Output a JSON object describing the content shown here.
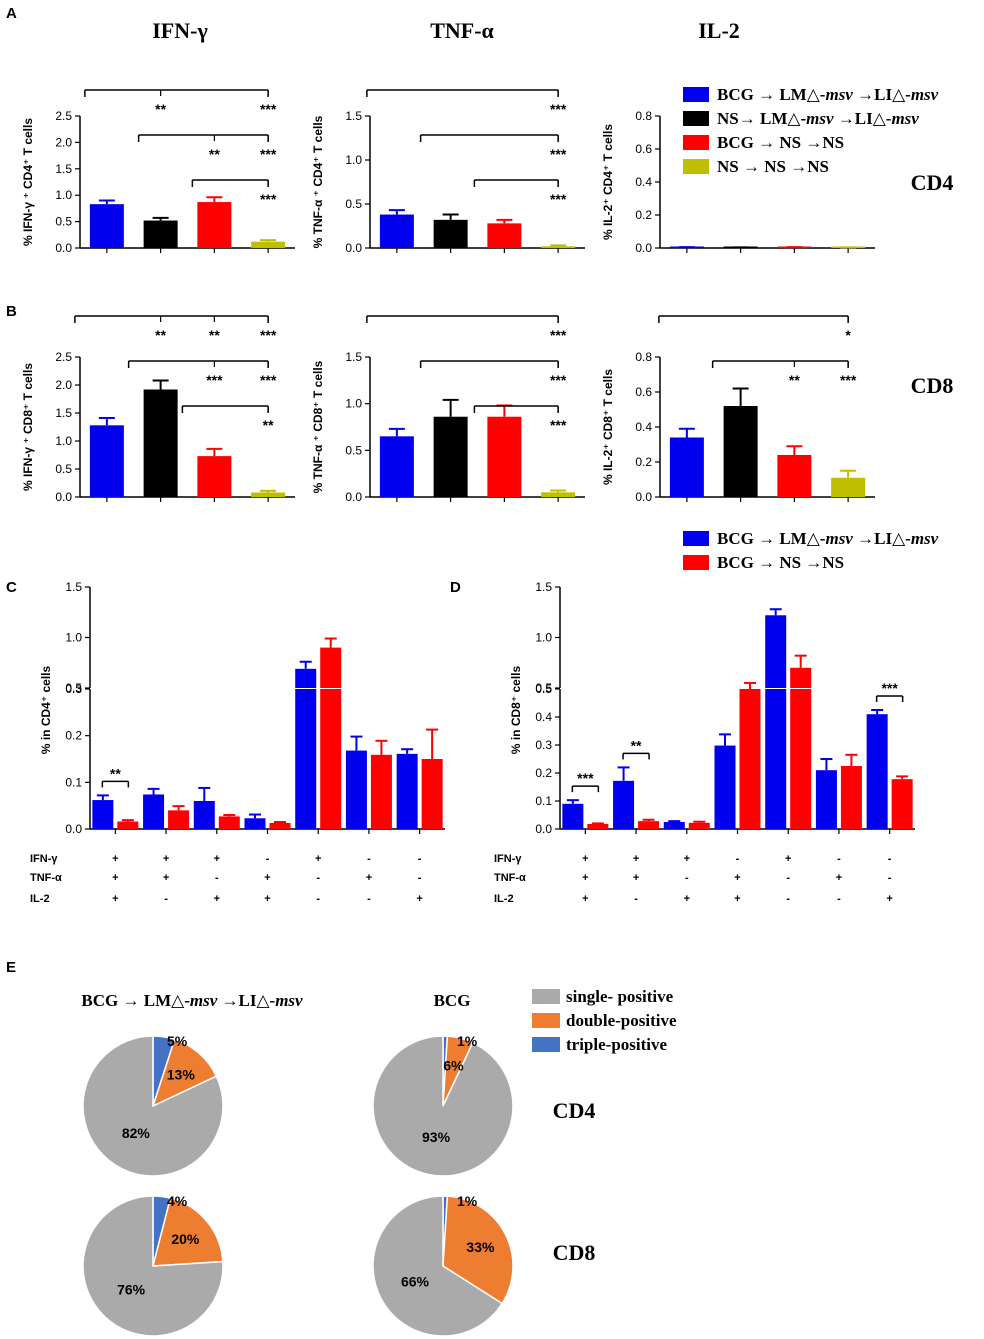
{
  "panel_letters": [
    "A",
    "B",
    "C",
    "D",
    "E"
  ],
  "column_titles": [
    "IFN-γ",
    "TNF-α",
    "IL-2"
  ],
  "row_labels": {
    "cd4": "CD4",
    "cd8": "CD8"
  },
  "colors": {
    "blue": "#0000ee",
    "black": "#000000",
    "red": "#ff0000",
    "yellow": "#bfbf00",
    "gray": "#aaaaaa",
    "orange": "#ed7d31",
    "lightblue": "#4472c4"
  },
  "legend_main": [
    {
      "prefix": "BCG → LM△-",
      "italic": "msv",
      "mid": " →LI△-",
      "italic2": "msv",
      "color": "#0000ee"
    },
    {
      "prefix": "NS→ LM△-",
      "italic": "msv",
      "mid": " →LI△-",
      "italic2": "msv",
      "color": "#000000"
    },
    {
      "prefix": "BCG → NS →NS",
      "italic": "",
      "mid": "",
      "italic2": "",
      "color": "#ff0000"
    },
    {
      "prefix": "NS → NS →NS",
      "italic": "",
      "mid": "",
      "italic2": "",
      "color": "#bfbf00"
    }
  ],
  "legend_cd": [
    {
      "prefix": "BCG → LM△-",
      "italic": "msv",
      "mid": " →LI△-",
      "italic2": "msv",
      "color": "#0000ee"
    },
    {
      "prefix": "BCG → NS →NS",
      "italic": "",
      "mid": "",
      "italic2": "",
      "color": "#ff0000"
    }
  ],
  "chart_data": [
    {
      "id": "A1",
      "type": "bar",
      "ylabel": "% IFN-γ ⁺ CD4⁺ T cells",
      "ylim": [
        0,
        2.5
      ],
      "ticks": [
        "0.0",
        "0.5",
        "1.0",
        "1.5",
        "2.0",
        "2.5"
      ],
      "tick_values": [
        0,
        0.5,
        1,
        1.5,
        2,
        2.5
      ],
      "values": [
        0.83,
        0.52,
        0.87,
        0.12
      ],
      "errors": [
        0.07,
        0.05,
        0.09,
        0.03
      ],
      "sig": [
        {
          "from": 0,
          "to": 3,
          "labels": [
            [
              "1",
              "**"
            ],
            [
              "3",
              "***"
            ]
          ]
        },
        {
          "from": 1,
          "to": 3,
          "labels": [
            [
              "2",
              "**"
            ],
            [
              "3",
              "***"
            ]
          ]
        },
        {
          "from": 2,
          "to": 3,
          "labels": [
            [
              "3",
              "***"
            ]
          ]
        }
      ]
    },
    {
      "id": "A2",
      "type": "bar",
      "ylabel": "% TNF-α ⁺ CD4⁺ T cells",
      "ylim": [
        0,
        1.5
      ],
      "ticks": [
        "0.0",
        "0.5",
        "1.0",
        "1.5"
      ],
      "tick_values": [
        0,
        0.5,
        1,
        1.5
      ],
      "values": [
        0.38,
        0.32,
        0.28,
        0.02
      ],
      "errors": [
        0.05,
        0.06,
        0.04,
        0.01
      ],
      "sig": [
        {
          "from": 0,
          "to": 3,
          "labels": [
            [
              "3",
              "***"
            ]
          ]
        },
        {
          "from": 1,
          "to": 3,
          "labels": [
            [
              "3",
              "***"
            ]
          ]
        },
        {
          "from": 2,
          "to": 3,
          "labels": [
            [
              "3",
              "***"
            ]
          ]
        }
      ]
    },
    {
      "id": "A3",
      "type": "bar",
      "ylabel": "% IL-2⁺ CD4⁺ T cells",
      "ylim": [
        0,
        0.8
      ],
      "ticks": [
        "0.0",
        "0.2",
        "0.4",
        "0.6",
        "0.8"
      ],
      "tick_values": [
        0,
        0.2,
        0.4,
        0.6,
        0.8
      ],
      "values": [
        0.004,
        0.003,
        0.004,
        0.003
      ],
      "errors": [
        0.001,
        0.001,
        0.001,
        0.001
      ],
      "sig": []
    },
    {
      "id": "B1",
      "type": "bar",
      "ylabel": "% IFN-γ ⁺ CD8⁺ T cells",
      "ylim": [
        0,
        2.5
      ],
      "ticks": [
        "0.0",
        "0.5",
        "1.0",
        "1.5",
        "2.0",
        "2.5"
      ],
      "tick_values": [
        0,
        0.5,
        1,
        1.5,
        2,
        2.5
      ],
      "values": [
        1.28,
        1.92,
        0.73,
        0.08
      ],
      "errors": [
        0.13,
        0.16,
        0.13,
        0.03
      ],
      "sig": [
        {
          "from": 0,
          "to": 3,
          "labels": [
            [
              "1",
              "**"
            ],
            [
              "2",
              "**"
            ],
            [
              "3",
              "***"
            ]
          ]
        },
        {
          "from": 1,
          "to": 3,
          "labels": [
            [
              "2",
              "***"
            ],
            [
              "3",
              "***"
            ]
          ]
        },
        {
          "from": 2,
          "to": 3,
          "labels": [
            [
              "3",
              "**"
            ]
          ]
        }
      ]
    },
    {
      "id": "B2",
      "type": "bar",
      "ylabel": "% TNF-α ⁺ CD8⁺ T cells",
      "ylim": [
        0,
        1.5
      ],
      "ticks": [
        "0.0",
        "0.5",
        "1.0",
        "1.5"
      ],
      "tick_values": [
        0,
        0.5,
        1,
        1.5
      ],
      "values": [
        0.65,
        0.86,
        0.86,
        0.05
      ],
      "errors": [
        0.08,
        0.18,
        0.12,
        0.02
      ],
      "sig": [
        {
          "from": 0,
          "to": 3,
          "labels": [
            [
              "3",
              "***"
            ]
          ]
        },
        {
          "from": 1,
          "to": 3,
          "labels": [
            [
              "3",
              "***"
            ]
          ]
        },
        {
          "from": 2,
          "to": 3,
          "labels": [
            [
              "3",
              "***"
            ]
          ]
        }
      ]
    },
    {
      "id": "B3",
      "type": "bar",
      "ylabel": "% IL-2⁺ CD8⁺ T cells",
      "ylim": [
        0,
        0.8
      ],
      "ticks": [
        "0.0",
        "0.2",
        "0.4",
        "0.6",
        "0.8"
      ],
      "tick_values": [
        0,
        0.2,
        0.4,
        0.6,
        0.8
      ],
      "values": [
        0.34,
        0.52,
        0.24,
        0.11
      ],
      "errors": [
        0.05,
        0.1,
        0.05,
        0.04
      ],
      "sig": [
        {
          "from": 0,
          "to": 3,
          "labels": [
            [
              "3",
              "*"
            ]
          ]
        },
        {
          "from": 1,
          "to": 3,
          "labels": [
            [
              "2",
              "**"
            ],
            [
              "3",
              "***"
            ]
          ]
        }
      ]
    },
    {
      "id": "C",
      "type": "bar",
      "ylabel": "% in CD4⁺ cells",
      "ylim": [
        0,
        1.5
      ],
      "lower_ticks": [
        "0.0",
        "0.1",
        "0.2",
        "0.3"
      ],
      "upper_ticks": [
        "0.5",
        "1.0",
        "1.5"
      ],
      "groups": [
        {
          "blue": 0.062,
          "blue_err": 0.01,
          "red": 0.016,
          "red_err": 0.003
        },
        {
          "blue": 0.074,
          "blue_err": 0.012,
          "red": 0.04,
          "red_err": 0.009
        },
        {
          "blue": 0.06,
          "blue_err": 0.028,
          "red": 0.027,
          "red_err": 0.003
        },
        {
          "blue": 0.023,
          "blue_err": 0.008,
          "red": 0.013,
          "red_err": 0.002
        },
        {
          "blue": 0.69,
          "blue_err": 0.07,
          "red": 0.9,
          "red_err": 0.09
        },
        {
          "blue": 0.168,
          "blue_err": 0.03,
          "red": 0.159,
          "red_err": 0.03
        },
        {
          "blue": 0.161,
          "blue_err": 0.01,
          "red": 0.15,
          "red_err": 0.063
        }
      ],
      "sig": [
        {
          "group": 0,
          "label": "**"
        }
      ]
    },
    {
      "id": "D",
      "type": "bar",
      "ylabel": "% in CD8⁺ cells",
      "ylim": [
        0,
        1.5
      ],
      "lower_ticks": [
        "0.0",
        "0.1",
        "0.2",
        "0.3",
        "0.4",
        "0.5"
      ],
      "upper_ticks": [
        "0.5",
        "1.0",
        "1.5"
      ],
      "groups": [
        {
          "blue": 0.09,
          "blue_err": 0.013,
          "red": 0.018,
          "red_err": 0.002
        },
        {
          "blue": 0.172,
          "blue_err": 0.048,
          "red": 0.028,
          "red_err": 0.005
        },
        {
          "blue": 0.025,
          "blue_err": 0.003,
          "red": 0.022,
          "red_err": 0.004
        },
        {
          "blue": 0.298,
          "blue_err": 0.04,
          "red": 0.5,
          "red_err": 0.05
        },
        {
          "blue": 1.22,
          "blue_err": 0.06,
          "red": 0.7,
          "red_err": 0.12
        },
        {
          "blue": 0.21,
          "blue_err": 0.04,
          "red": 0.225,
          "red_err": 0.04
        },
        {
          "blue": 0.41,
          "blue_err": 0.015,
          "red": 0.178,
          "red_err": 0.01
        }
      ],
      "sig": [
        {
          "group": 0,
          "label": "***"
        },
        {
          "group": 1,
          "label": "**"
        },
        {
          "group": 6,
          "label": "***"
        }
      ]
    },
    {
      "id": "E",
      "type": "pie",
      "legend": [
        "single- positive",
        "double-positive",
        "triple-positive"
      ],
      "column_titles": [
        "BCG → LM△-msv →LI△-msv",
        "BCG"
      ],
      "pies": [
        {
          "name": "CD4 BCG→LM→LI",
          "single": 82,
          "double": 13,
          "triple": 5
        },
        {
          "name": "CD4 BCG",
          "single": 93,
          "double": 6,
          "triple": 1
        },
        {
          "name": "CD8 BCG→LM→LI",
          "single": 76,
          "double": 20,
          "triple": 4
        },
        {
          "name": "CD8 BCG",
          "single": 66,
          "double": 33,
          "triple": 1
        }
      ],
      "labels": [
        "82%",
        "13%",
        "5%",
        "93%",
        "6%",
        "1%",
        "76%",
        "20%",
        "4%",
        "66%",
        "33%",
        "1%"
      ]
    }
  ],
  "signs": {
    "row_labels": [
      "IFN-γ",
      "TNF-α",
      "IL-2"
    ],
    "ifn": [
      "+",
      "+",
      "+",
      "-",
      "+",
      "-",
      "-"
    ],
    "tnf": [
      "+",
      "+",
      "-",
      "+",
      "-",
      "+",
      "-"
    ],
    "il2": [
      "+",
      "-",
      "+",
      "+",
      "-",
      "-",
      "+"
    ]
  }
}
